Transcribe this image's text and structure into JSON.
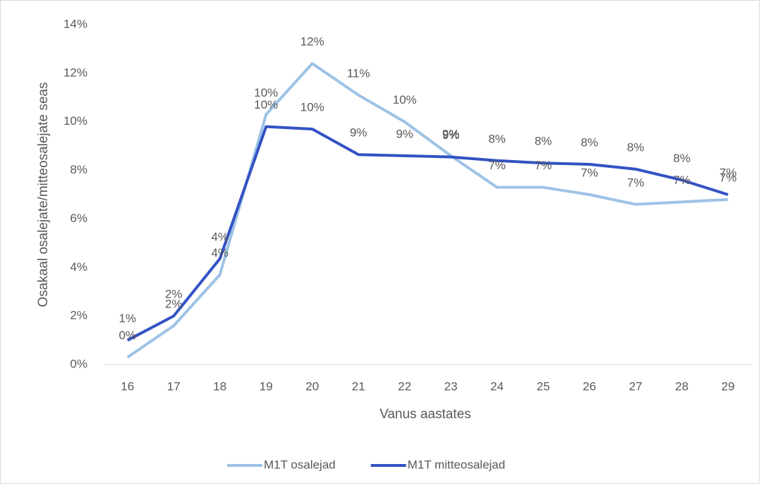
{
  "chart_data": {
    "type": "line",
    "y_axis_label": "Osakaal osalejate/mitteosalejate seas",
    "x_axis_label": "Vanus aastates",
    "categories": [
      "16",
      "17",
      "18",
      "19",
      "20",
      "21",
      "22",
      "23",
      "24",
      "25",
      "26",
      "27",
      "28",
      "29"
    ],
    "series": [
      {
        "name": "M1T osalejad",
        "color": "#9dc3e6",
        "values": [
          0.3,
          1.6,
          3.7,
          10.3,
          12.4,
          11.1,
          10.0,
          8.6,
          7.3,
          7.3,
          7.0,
          6.6,
          6.7,
          6.8
        ],
        "value_labels": [
          "0%",
          "2%",
          "4%",
          "10%",
          "12%",
          "11%",
          "10%",
          "9%",
          "7%",
          "7%",
          "7%",
          "7%",
          "7%",
          "7%"
        ]
      },
      {
        "name": "M1T mitteosalejad",
        "color": "#3352c4",
        "values": [
          1.0,
          2.0,
          4.36,
          9.8,
          9.7,
          8.65,
          8.6,
          8.55,
          8.4,
          8.3,
          8.25,
          8.05,
          7.6,
          7.0
        ],
        "value_labels": [
          "1%",
          "2%",
          "4%",
          "10%",
          "10%",
          "9%",
          "9%",
          "9%",
          "8%",
          "8%",
          "8%",
          "8%",
          "8%",
          "7%"
        ]
      }
    ],
    "ylim": [
      0,
      14
    ],
    "yticks": [
      {
        "value": 0,
        "label": "0%"
      },
      {
        "value": 2,
        "label": "2%"
      },
      {
        "value": 4,
        "label": "4%"
      },
      {
        "value": 6,
        "label": "6%"
      },
      {
        "value": 8,
        "label": "8%"
      },
      {
        "value": 10,
        "label": "10%"
      },
      {
        "value": 12,
        "label": "12%"
      },
      {
        "value": 14,
        "label": "14%"
      }
    ],
    "legend": "bottom"
  }
}
